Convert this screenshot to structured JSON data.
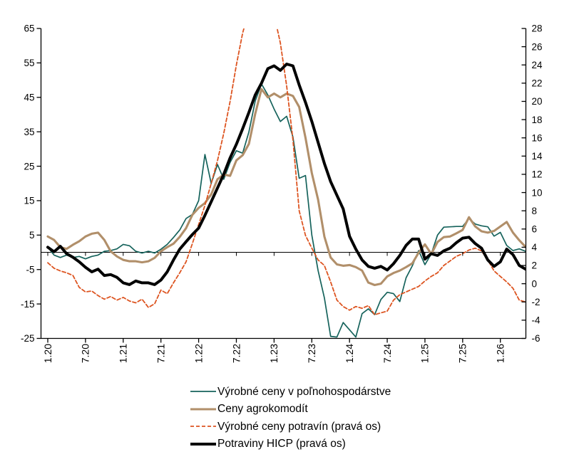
{
  "chart_data": {
    "type": "line",
    "title": "",
    "x_tick_labels": [
      "1.20",
      "7.20",
      "1.21",
      "7.21",
      "1.22",
      "7.22",
      "1.23",
      "7.23",
      "1.24",
      "7.24",
      "1.25",
      "7.25",
      "1.26"
    ],
    "points_per_tick": 6,
    "left_axis": {
      "min": -25,
      "max": 65,
      "ticks": [
        65,
        55,
        45,
        35,
        25,
        15,
        5,
        -5,
        -15,
        -25
      ]
    },
    "right_axis": {
      "min": -6,
      "max": 28,
      "ticks": [
        28,
        26,
        24,
        22,
        20,
        18,
        16,
        14,
        12,
        10,
        8,
        6,
        4,
        2,
        0,
        -2,
        -4,
        -6
      ]
    },
    "zero_line_left_value": 0,
    "axis_color": "#000000",
    "series": [
      {
        "name": "Výrobné ceny v poľnohospodárstve",
        "axis": "left",
        "color": "#16635c",
        "width": 1.7,
        "dash": null,
        "values": [
          1.5,
          -0.8,
          -1.5,
          -0.8,
          -1.5,
          -1.2,
          -1.9,
          -1.2,
          -0.8,
          0.3,
          0.5,
          1.0,
          2.3,
          1.9,
          0.3,
          -0.2,
          0.3,
          -0.2,
          0.9,
          2.3,
          4.3,
          6.5,
          9.8,
          11.0,
          15.0,
          28.4,
          20.0,
          25.5,
          21.2,
          26.1,
          29.5,
          28.8,
          35.0,
          43.9,
          48.9,
          45.7,
          41.6,
          38.0,
          39.5,
          33.5,
          21.5,
          22.3,
          5.0,
          -5.3,
          -13.2,
          -24.4,
          -24.6,
          -20.4,
          -22.5,
          -24.6,
          -17.8,
          -16.4,
          -18.1,
          -13.7,
          -11.6,
          -12.0,
          -14.3,
          -7.4,
          -3.9,
          0.5,
          -3.6,
          -0.5,
          5.0,
          7.3,
          7.4,
          7.5,
          7.5,
          9.8,
          8.2,
          7.7,
          7.4,
          4.7,
          5.8,
          2.0,
          0.5,
          1.0,
          0.3
        ]
      },
      {
        "name": "Ceny agrokomodít",
        "axis": "left",
        "color": "#b18f6a",
        "width": 3.1,
        "dash": null,
        "values": [
          4.6,
          3.6,
          1.5,
          1.0,
          2.2,
          3.2,
          4.6,
          5.4,
          5.7,
          3.6,
          0.3,
          -1.2,
          -2.2,
          -2.6,
          -2.6,
          -2.9,
          -2.6,
          -1.6,
          0.3,
          1.5,
          2.5,
          4.5,
          7.0,
          10.9,
          12.9,
          14.3,
          16.8,
          21.2,
          22.6,
          22.2,
          26.7,
          28.2,
          31.5,
          40.2,
          47.4,
          45.0,
          46.1,
          45.0,
          46.1,
          45.4,
          42.2,
          33.3,
          23.0,
          15.3,
          4.6,
          -1.5,
          -3.5,
          -3.9,
          -3.7,
          -4.3,
          -5.3,
          -8.8,
          -9.5,
          -9.1,
          -7.0,
          -6.0,
          -5.3,
          -4.3,
          -3.2,
          -0.1,
          2.3,
          -0.5,
          3.0,
          4.4,
          4.6,
          5.5,
          6.5,
          10.2,
          7.5,
          6.1,
          5.7,
          6.2,
          7.5,
          8.8,
          5.7,
          3.5,
          1.6
        ]
      },
      {
        "name": "Výrobné ceny potravín (pravá os)",
        "axis": "right",
        "color": "#dd5420",
        "width": 1.8,
        "dash": "5 3",
        "values": [
          2.3,
          1.7,
          1.4,
          1.2,
          0.9,
          -0.4,
          -0.9,
          -0.8,
          -1.3,
          -1.7,
          -1.4,
          -1.8,
          -1.5,
          -1.9,
          -2.1,
          -1.7,
          -2.6,
          -2.2,
          -0.7,
          -1.1,
          0.1,
          1.2,
          2.4,
          4.4,
          6.5,
          8.6,
          11.0,
          13.5,
          16.5,
          20.0,
          24.0,
          27.5,
          30.0,
          31.0,
          31.0,
          30.5,
          29.5,
          26.4,
          21.7,
          15.8,
          8.0,
          5.3,
          3.9,
          2.6,
          2.0,
          0.2,
          -1.8,
          -2.5,
          -2.9,
          -2.5,
          -2.7,
          -2.4,
          -3.4,
          -3.2,
          -3.0,
          -1.8,
          -1.2,
          -0.9,
          -0.6,
          -0.3,
          0.3,
          0.8,
          1.2,
          2.0,
          2.5,
          3.0,
          3.3,
          3.7,
          3.9,
          3.6,
          2.6,
          1.4,
          0.8,
          0.2,
          -0.5,
          -1.8,
          -2.0
        ]
      },
      {
        "name": "Potraviny HICP (pravá os)",
        "axis": "right",
        "color": "#000000",
        "width": 4.0,
        "dash": null,
        "values": [
          4.0,
          3.5,
          4.1,
          3.3,
          2.9,
          2.4,
          1.8,
          1.3,
          1.6,
          0.9,
          1.0,
          0.7,
          0.1,
          -0.1,
          0.3,
          0.1,
          0.1,
          -0.1,
          0.4,
          1.3,
          2.6,
          3.8,
          4.6,
          5.4,
          6.1,
          7.5,
          9.0,
          10.5,
          12.0,
          13.8,
          15.3,
          17.0,
          18.8,
          20.7,
          22.0,
          23.6,
          23.9,
          23.4,
          24.1,
          23.9,
          21.8,
          19.9,
          17.8,
          15.5,
          13.2,
          11.2,
          9.7,
          8.2,
          5.2,
          3.8,
          2.6,
          1.9,
          1.7,
          1.9,
          1.5,
          2.2,
          3.1,
          4.2,
          4.9,
          4.9,
          2.7,
          3.3,
          3.1,
          3.6,
          3.9,
          4.5,
          5.0,
          5.1,
          4.4,
          3.9,
          2.6,
          1.9,
          2.4,
          3.8,
          3.2,
          2.0,
          1.6
        ]
      }
    ]
  }
}
